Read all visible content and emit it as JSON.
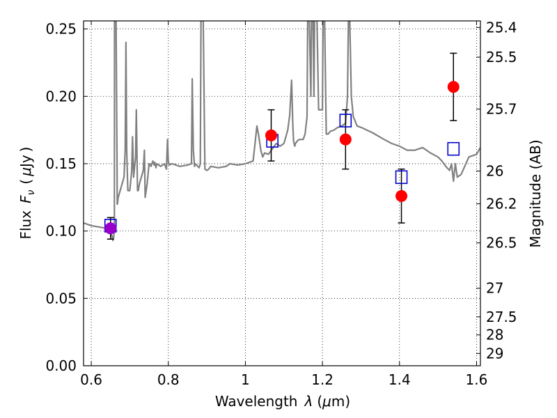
{
  "chart_data": {
    "type": "scatter",
    "title": "",
    "xlabel": "Wavelength",
    "xlabel_symbol": "λ",
    "xlabel_unit_open": "(",
    "xlabel_unit_mu": "μ",
    "xlabel_unit_rest": "m)",
    "ylabel": "Flux",
    "ylabel_symbol": "F",
    "ylabel_subscript": "ν",
    "ylabel_unit_open": "(",
    "ylabel_unit_mu": "μ",
    "ylabel_unit_rest": "Jy",
    "ylabel_unit_close": ")",
    "y2label": "Magnitude (AB)",
    "xlim": [
      0.58,
      1.61
    ],
    "ylim": [
      0.0,
      0.256
    ],
    "grid": true,
    "x_ticks": [
      {
        "value": 0.6,
        "label": "0.6"
      },
      {
        "value": 0.8,
        "label": "0.8"
      },
      {
        "value": 1.0,
        "label": "1"
      },
      {
        "value": 1.2,
        "label": "1.2"
      },
      {
        "value": 1.4,
        "label": "1.4"
      },
      {
        "value": 1.6,
        "label": "1.6"
      }
    ],
    "y_ticks": [
      {
        "value": 0.0,
        "label": "0.00"
      },
      {
        "value": 0.05,
        "label": "0.05"
      },
      {
        "value": 0.1,
        "label": "0.10"
      },
      {
        "value": 0.15,
        "label": "0.15"
      },
      {
        "value": 0.2,
        "label": "0.20"
      },
      {
        "value": 0.25,
        "label": "0.25"
      }
    ],
    "y2_ticks": [
      {
        "value": 25.4,
        "label": "25.4"
      },
      {
        "value": 25.5,
        "label": "25.5"
      },
      {
        "value": 25.7,
        "label": "25.7"
      },
      {
        "value": 26.0,
        "label": "26"
      },
      {
        "value": 26.2,
        "label": "26.2"
      },
      {
        "value": 26.5,
        "label": "26.5"
      },
      {
        "value": 27.0,
        "label": "27"
      },
      {
        "value": 27.5,
        "label": "27.5"
      },
      {
        "value": 28.0,
        "label": "28"
      },
      {
        "value": 29.0,
        "label": "29"
      }
    ],
    "colors": {
      "spectrum": "#808080",
      "observed": "#ff0000",
      "model": "#0000cc",
      "overlap": "#9900cc",
      "errorbar": "#000000"
    },
    "series": [
      {
        "name": "model spectrum",
        "kind": "line",
        "x": [
          0.58,
          0.6,
          0.62,
          0.64,
          0.645,
          0.65,
          0.652,
          0.654,
          0.656,
          0.658,
          0.66,
          0.6605,
          0.661,
          0.664,
          0.667,
          0.6675,
          0.668,
          0.67,
          0.675,
          0.68,
          0.685,
          0.688,
          0.69,
          0.692,
          0.695,
          0.7,
          0.705,
          0.707,
          0.71,
          0.715,
          0.717,
          0.72,
          0.722,
          0.725,
          0.73,
          0.735,
          0.738,
          0.74,
          0.745,
          0.75,
          0.755,
          0.76,
          0.763,
          0.765,
          0.768,
          0.77,
          0.78,
          0.79,
          0.795,
          0.798,
          0.8,
          0.802,
          0.81,
          0.83,
          0.85,
          0.86,
          0.862,
          0.865,
          0.868,
          0.87,
          0.88,
          0.883,
          0.885,
          0.887,
          0.89,
          0.895,
          0.9,
          0.905,
          0.91,
          0.93,
          0.95,
          0.96,
          0.98,
          1.0,
          1.01,
          1.02,
          1.025,
          1.03,
          1.035,
          1.04,
          1.045,
          1.05,
          1.06,
          1.08,
          1.09,
          1.1,
          1.11,
          1.115,
          1.12,
          1.123,
          1.125,
          1.128,
          1.13,
          1.135,
          1.14,
          1.145,
          1.15,
          1.155,
          1.16,
          1.162,
          1.165,
          1.17,
          1.172,
          1.175,
          1.178,
          1.18,
          1.185,
          1.19,
          1.2,
          1.202,
          1.205,
          1.21,
          1.215,
          1.22,
          1.23,
          1.24,
          1.25,
          1.26,
          1.265,
          1.268,
          1.27,
          1.272,
          1.275,
          1.28,
          1.29,
          1.3,
          1.33,
          1.36,
          1.38,
          1.4,
          1.42,
          1.44,
          1.46,
          1.48,
          1.5,
          1.51,
          1.52,
          1.53,
          1.535,
          1.54,
          1.545,
          1.55,
          1.56,
          1.58,
          1.59,
          1.6,
          1.61
        ],
        "y": [
          0.106,
          0.104,
          0.103,
          0.102,
          0.101,
          0.1,
          0.098,
          0.096,
          0.093,
          0.095,
          0.1,
          0.27,
          0.27,
          0.27,
          0.15,
          0.12,
          0.12,
          0.125,
          0.13,
          0.135,
          0.14,
          0.16,
          0.24,
          0.16,
          0.13,
          0.13,
          0.145,
          0.17,
          0.14,
          0.155,
          0.19,
          0.13,
          0.13,
          0.135,
          0.14,
          0.145,
          0.16,
          0.125,
          0.135,
          0.15,
          0.148,
          0.152,
          0.149,
          0.151,
          0.147,
          0.15,
          0.148,
          0.15,
          0.146,
          0.168,
          0.152,
          0.149,
          0.15,
          0.148,
          0.149,
          0.15,
          0.213,
          0.16,
          0.148,
          0.15,
          0.147,
          0.15,
          0.27,
          0.27,
          0.27,
          0.146,
          0.145,
          0.146,
          0.148,
          0.147,
          0.148,
          0.15,
          0.149,
          0.15,
          0.151,
          0.152,
          0.165,
          0.178,
          0.17,
          0.16,
          0.155,
          0.158,
          0.157,
          0.165,
          0.163,
          0.165,
          0.175,
          0.186,
          0.212,
          0.18,
          0.167,
          0.163,
          0.165,
          0.167,
          0.168,
          0.168,
          0.168,
          0.172,
          0.185,
          0.27,
          0.27,
          0.2,
          0.27,
          0.27,
          0.2,
          0.27,
          0.27,
          0.19,
          0.19,
          0.27,
          0.27,
          0.172,
          0.172,
          0.174,
          0.175,
          0.177,
          0.178,
          0.18,
          0.2,
          0.27,
          0.27,
          0.24,
          0.2,
          0.185,
          0.178,
          0.177,
          0.173,
          0.168,
          0.165,
          0.163,
          0.16,
          0.16,
          0.162,
          0.158,
          0.155,
          0.152,
          0.148,
          0.145,
          0.15,
          0.137,
          0.15,
          0.14,
          0.142,
          0.155,
          0.156,
          0.157,
          0.162
        ]
      },
      {
        "name": "observed photometry",
        "kind": "errorbar-points",
        "marker": "circle",
        "x": [
          0.65,
          1.067,
          1.26,
          1.405,
          1.54
        ],
        "y": [
          0.102,
          0.171,
          0.168,
          0.126,
          0.207
        ],
        "yerr": [
          0.008,
          0.019,
          0.022,
          0.02,
          0.025
        ]
      },
      {
        "name": "model photometry",
        "kind": "points",
        "marker": "square-open",
        "x": [
          0.65,
          1.07,
          1.26,
          1.405,
          1.54
        ],
        "y": [
          0.104,
          0.167,
          0.182,
          0.14,
          0.161
        ]
      }
    ]
  }
}
